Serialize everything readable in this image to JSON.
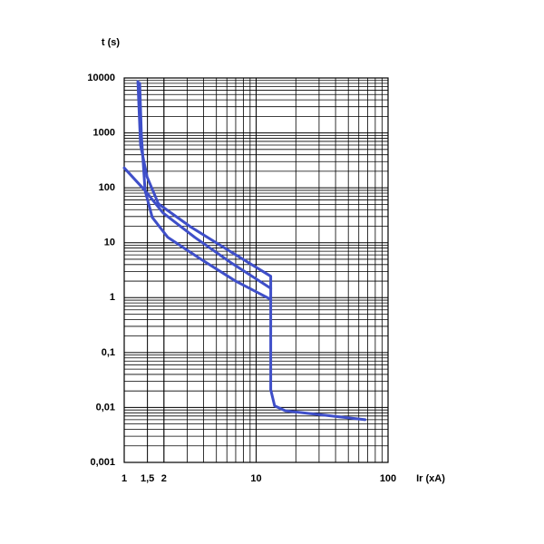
{
  "chart_data": {
    "type": "line",
    "y_label": "t (s)",
    "x_label": "Ir (xA)",
    "xlog": true,
    "ylog": true,
    "grid": true,
    "minor_grid": true,
    "xlim": [
      1,
      100
    ],
    "ylim": [
      0.001,
      10000
    ],
    "xticks": [
      1,
      {
        "value": 1.5,
        "label": "1,5"
      },
      2,
      10,
      100
    ],
    "yticks": [
      10000,
      1000,
      100,
      10,
      1,
      {
        "value": 0.1,
        "label": "0,1"
      },
      {
        "value": 0.01,
        "label": "0,01"
      },
      {
        "value": 0.001,
        "label": "0,001"
      }
    ],
    "series": [
      {
        "color": "#3f4fc9",
        "x": [
          1.27,
          1.33,
          1.49,
          1.82,
          3.17,
          5.98,
          12.9,
          12.9
        ],
        "values": [
          8600,
          600,
          158,
          51,
          19.6,
          7.6,
          2.45,
          0.93
        ]
      },
      {
        "color": "#3f4fc9",
        "x": [
          1.31,
          1.35,
          1.44,
          1.97,
          3.43,
          6.47,
          12.9
        ],
        "values": [
          8000,
          880,
          89,
          35,
          12.5,
          4.3,
          1.48
        ]
      },
      {
        "color": "#3f4fc9",
        "x": [
          1,
          1.44,
          1.63,
          2.14,
          3.72,
          7,
          12.9,
          12.9,
          13.8,
          16.7,
          34,
          67
        ],
        "values": [
          230,
          89,
          29,
          12.5,
          5.2,
          2.0,
          0.93,
          0.021,
          0.0107,
          0.0087,
          0.0072,
          0.006
        ]
      }
    ]
  }
}
